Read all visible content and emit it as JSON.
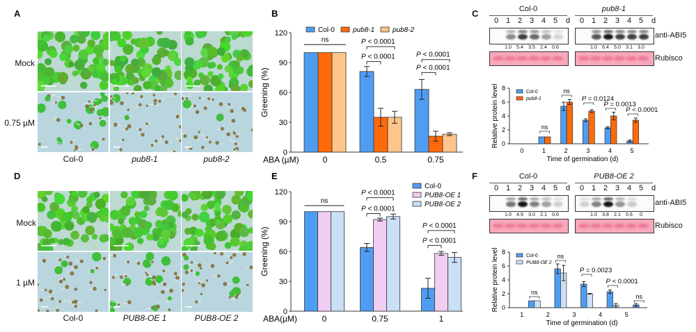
{
  "panels": {
    "A": {
      "letter": "A",
      "rows": [
        "Mock",
        "0.75 µM"
      ],
      "cols": [
        {
          "label": "Col-0",
          "italic": false
        },
        {
          "label": "pub8-1",
          "italic": true
        },
        {
          "label": "pub8-2",
          "italic": true
        }
      ]
    },
    "D": {
      "letter": "D",
      "rows": [
        "Mock",
        "1 µM"
      ],
      "cols": [
        {
          "label": "Col-0",
          "italic": false
        },
        {
          "label": "PUB8-OE 1",
          "italic": true
        },
        {
          "label": "PUB8-OE 2",
          "italic": true
        }
      ]
    },
    "C": {
      "letter": "C",
      "groups": [
        {
          "label": "Col-0",
          "italic": false
        },
        {
          "label": "pub8-1",
          "italic": true
        }
      ],
      "lanes": [
        "0",
        "1",
        "2",
        "3",
        "4",
        "5"
      ],
      "unit": "d",
      "antibody": "anti-ABI5",
      "loading": "Rubisco",
      "quant": [
        [
          "1.0",
          "5.4",
          "3.5",
          "2.4",
          "0.6"
        ],
        [
          "1.0",
          "6.4",
          "5.0",
          "3.1",
          "3.0"
        ]
      ],
      "intensity": [
        [
          0,
          0.45,
          0.8,
          0.6,
          0.35,
          0.1
        ],
        [
          0,
          0.7,
          1.0,
          0.8,
          0.8,
          0.8
        ]
      ]
    },
    "F": {
      "letter": "F",
      "groups": [
        {
          "label": "Col-0",
          "italic": false
        },
        {
          "label": "PUB8-OE 2",
          "italic": true
        }
      ],
      "lanes": [
        "0",
        "1",
        "2",
        "3",
        "4",
        "5"
      ],
      "unit": "d",
      "antibody": "anti-ABI5",
      "loading": "Rubisco",
      "quant": [
        [
          "1.0",
          "4.9",
          "3.0",
          "2.1",
          "0.6"
        ],
        [
          "1.0",
          "3.8",
          "2.1",
          "0.6",
          "0"
        ]
      ],
      "intensity": [
        [
          0,
          0.55,
          1.0,
          0.5,
          0.35,
          0.12
        ],
        [
          0.12,
          0.5,
          1.0,
          0.4,
          0.15,
          0
        ]
      ]
    }
  },
  "chart_data": [
    {
      "id": "B",
      "letter": "B",
      "type": "bar",
      "title": "",
      "xlabel": "ABA (µM)",
      "ylabel": "Greening (%)",
      "ylim": [
        0,
        120
      ],
      "yticks": [
        0,
        30,
        60,
        90,
        120
      ],
      "categories": [
        "0",
        "0.5",
        "0.75"
      ],
      "legend_position": "top",
      "series": [
        {
          "name": "Col-0",
          "italic": false,
          "color": "#4f9df2",
          "values": [
            100,
            81,
            63
          ],
          "errors": [
            0,
            5,
            10
          ]
        },
        {
          "name": "pub8-1",
          "italic": true,
          "color": "#ff6a0a",
          "values": [
            100,
            35,
            16
          ],
          "errors": [
            0,
            9,
            5
          ]
        },
        {
          "name": "pub8-2",
          "italic": true,
          "color": "#ffc58a",
          "values": [
            100,
            35,
            18
          ],
          "errors": [
            0,
            6,
            1.5
          ]
        }
      ],
      "annotations": [
        {
          "text": "ns",
          "category": 0,
          "from": 0,
          "to": 2,
          "level": 108,
          "style": "line"
        },
        {
          "text": "P < 0.0001",
          "category": 1,
          "from": 0,
          "to": 2,
          "level": 106,
          "style": "bracket"
        },
        {
          "text": "P < 0.0001",
          "category": 1,
          "from": 0,
          "to": 1,
          "level": 91,
          "style": "bracket"
        },
        {
          "text": "P < 0.0001",
          "category": 2,
          "from": 0,
          "to": 2,
          "level": 93,
          "style": "bracket"
        },
        {
          "text": "P < 0.0001",
          "category": 2,
          "from": 0,
          "to": 1,
          "level": 80,
          "style": "bracket"
        }
      ]
    },
    {
      "id": "E",
      "letter": "E",
      "type": "bar",
      "title": "",
      "xlabel": "ABA(µM)",
      "ylabel": "Greening (%)",
      "ylim": [
        0,
        120
      ],
      "yticks": [
        0,
        30,
        60,
        90,
        120
      ],
      "categories": [
        "0",
        "0.75",
        "1"
      ],
      "legend_position": "top-right",
      "series": [
        {
          "name": "Col-0",
          "italic": false,
          "color": "#4f9df2",
          "values": [
            100,
            64,
            23
          ],
          "errors": [
            0,
            4,
            10
          ]
        },
        {
          "name": "PUB8-OE 1",
          "italic": true,
          "color": "#f2cdf2",
          "values": [
            100,
            92,
            58
          ],
          "errors": [
            0,
            1.5,
            2
          ]
        },
        {
          "name": "PUB8-OE 2",
          "italic": true,
          "color": "#c9e0f7",
          "values": [
            100,
            95,
            54
          ],
          "errors": [
            0,
            2.5,
            5
          ]
        }
      ],
      "annotations": [
        {
          "text": "ns",
          "category": 0,
          "from": 0,
          "to": 2,
          "level": 106,
          "style": "line"
        },
        {
          "text": "P < 0.0001",
          "category": 1,
          "from": 0,
          "to": 2,
          "level": 114,
          "style": "bracket"
        },
        {
          "text": "P < 0.0001",
          "category": 1,
          "from": 0,
          "to": 1,
          "level": 98,
          "style": "bracket"
        },
        {
          "text": "P < 0.0001",
          "category": 2,
          "from": 0,
          "to": 2,
          "level": 81,
          "style": "bracket"
        },
        {
          "text": "P < 0.0001",
          "category": 2,
          "from": 0,
          "to": 1,
          "level": 66,
          "style": "bracket"
        }
      ]
    },
    {
      "id": "C-quant",
      "type": "bar",
      "title": "",
      "xlabel": "Time of germination (d)",
      "ylabel": "Relative protein level",
      "ylim": [
        0,
        8
      ],
      "yticks": [
        0,
        2,
        4,
        6,
        8
      ],
      "categories": [
        "0",
        "1",
        "2",
        "3",
        "4",
        "5"
      ],
      "legend_position": "top-left",
      "series": [
        {
          "name": "Col-0",
          "italic": false,
          "color": "#4f9df2",
          "values": [
            0,
            1,
            5.4,
            3.4,
            2.3,
            0.4
          ],
          "errors": [
            0,
            0,
            0.6,
            0.2,
            0.15,
            0.15
          ]
        },
        {
          "name": "pub8-1",
          "italic": true,
          "color": "#ff6a0a",
          "values": [
            0,
            1,
            6.0,
            4.7,
            4.0,
            3.4
          ],
          "errors": [
            0,
            0,
            0.35,
            0.2,
            0.55,
            0.3
          ]
        }
      ],
      "annotations": [
        {
          "text": "ns",
          "category": 1,
          "level": 1.8
        },
        {
          "text": "ns",
          "category": 2,
          "level": 7.0
        },
        {
          "text": "P = 0.0124",
          "category": 3,
          "level": 5.9
        },
        {
          "text": "P = 0.0013",
          "category": 4,
          "level": 5.1
        },
        {
          "text": "P < 0.0001",
          "category": 5,
          "level": 4.3
        }
      ]
    },
    {
      "id": "F-quant",
      "type": "bar",
      "title": "",
      "xlabel": "Time of germination (d)",
      "ylabel": "Relative protein level",
      "ylim": [
        0,
        8
      ],
      "yticks": [
        0,
        2,
        4,
        6,
        8
      ],
      "categories": [
        "1",
        "2",
        "3",
        "4",
        "5"
      ],
      "legend_position": "top-left",
      "series": [
        {
          "name": "Col-0",
          "italic": false,
          "color": "#4f9df2",
          "values": [
            1,
            5.6,
            3.4,
            2.3,
            0.4
          ],
          "errors": [
            0,
            0.7,
            0.35,
            0.25,
            0.2
          ]
        },
        {
          "name": "PUB8-OE 2",
          "italic": true,
          "color": "#c9e0f7",
          "values": [
            1,
            5.0,
            2.0,
            0.35,
            0
          ],
          "errors": [
            0,
            1.1,
            0.05,
            0.25,
            0
          ]
        }
      ],
      "annotations": [
        {
          "text": "ns",
          "category": 1,
          "level": 1.6
        },
        {
          "text": "ns",
          "category": 2,
          "level": 6.8
        },
        {
          "text": "P = 0.0023",
          "category": 3,
          "level": 4.8
        },
        {
          "text": "P < 0.0001",
          "category": 4,
          "level": 3.2
        },
        {
          "text": "ns",
          "category": 5,
          "level": 1.0
        }
      ]
    }
  ]
}
